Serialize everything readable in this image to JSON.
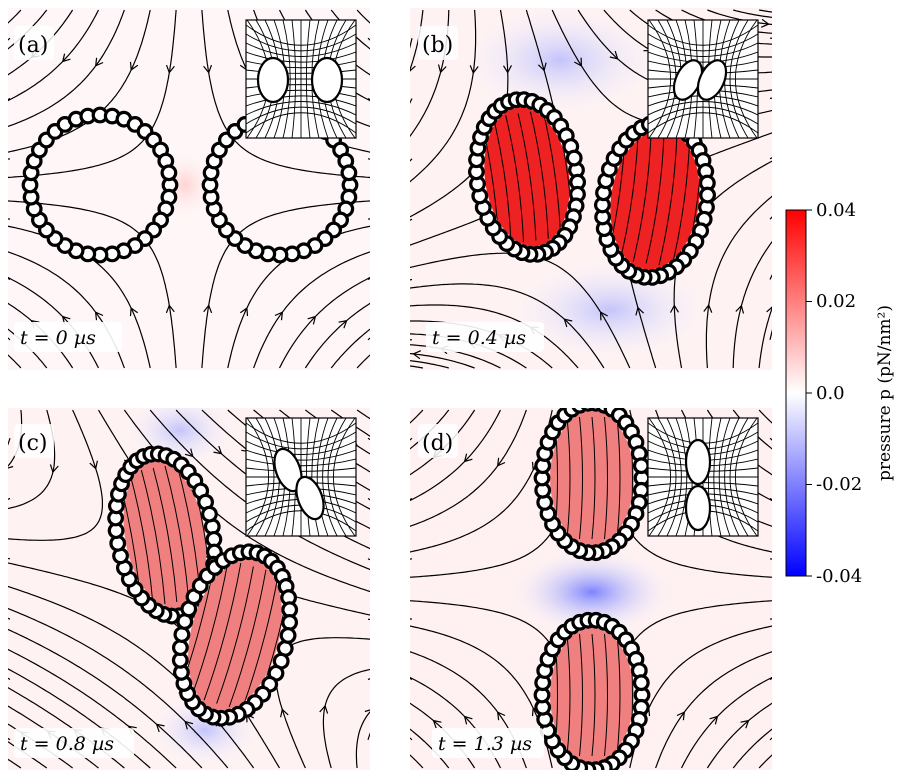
{
  "panels": [
    {
      "label": "(a)",
      "time": "t = 0 µs"
    },
    {
      "label": "(b)",
      "time": "t = 0.4 µs"
    },
    {
      "label": "(c)",
      "time": "t = 0.8 µs"
    },
    {
      "label": "(d)",
      "time": "t = 1.3 µs"
    }
  ],
  "colorbar": {
    "title": "pressure p (pN/nm²)",
    "ticks": [
      "0.04",
      "0.02",
      "0.0",
      "-0.02",
      "-0.04"
    ],
    "colors": {
      "high": "#ff0000",
      "mid": "#ffffff",
      "low": "#0000ff"
    }
  }
}
